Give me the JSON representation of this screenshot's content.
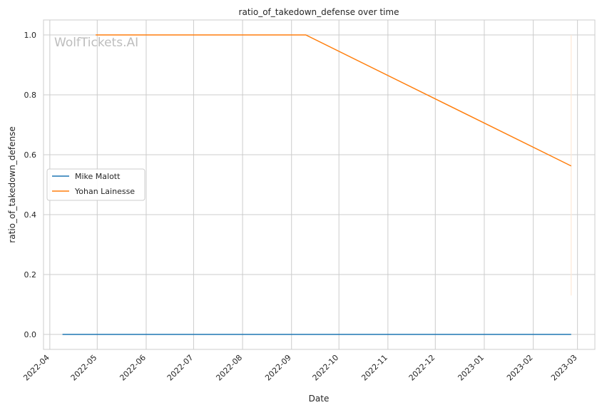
{
  "chart_data": {
    "type": "line",
    "title": "ratio_of_takedown_defense over time",
    "xlabel": "Date",
    "ylabel": "ratio_of_takedown_defense",
    "watermark": "WolfTickets.AI",
    "x_ticks": [
      "2022-04",
      "2022-05",
      "2022-06",
      "2022-07",
      "2022-08",
      "2022-09",
      "2022-10",
      "2022-11",
      "2022-12",
      "2023-01",
      "2023-02",
      "2023-03"
    ],
    "y_ticks": [
      0.0,
      0.2,
      0.4,
      0.6,
      0.8,
      1.0
    ],
    "y_tick_labels": [
      "0.0",
      "0.2",
      "0.4",
      "0.6",
      "0.8",
      "1.0"
    ],
    "xlim": [
      "2022-03-28",
      "2023-03-12"
    ],
    "ylim": [
      -0.05,
      1.05
    ],
    "grid": true,
    "legend_position": "center-left",
    "series": [
      {
        "name": "Mike Malott",
        "color": "#1f77b4",
        "x": [
          "2022-04-09",
          "2023-02-25"
        ],
        "y": [
          0.0,
          0.0
        ]
      },
      {
        "name": "Yohan Lainesse",
        "color": "#ff7f0e",
        "x": [
          "2022-04-30",
          "2022-09-10",
          "2023-02-25"
        ],
        "y": [
          1.0,
          1.0,
          0.5625
        ]
      }
    ],
    "annotation_band": {
      "x": "2023-02-25",
      "y_range": [
        0.13,
        1.0
      ],
      "color": "#ffe9d6"
    }
  }
}
